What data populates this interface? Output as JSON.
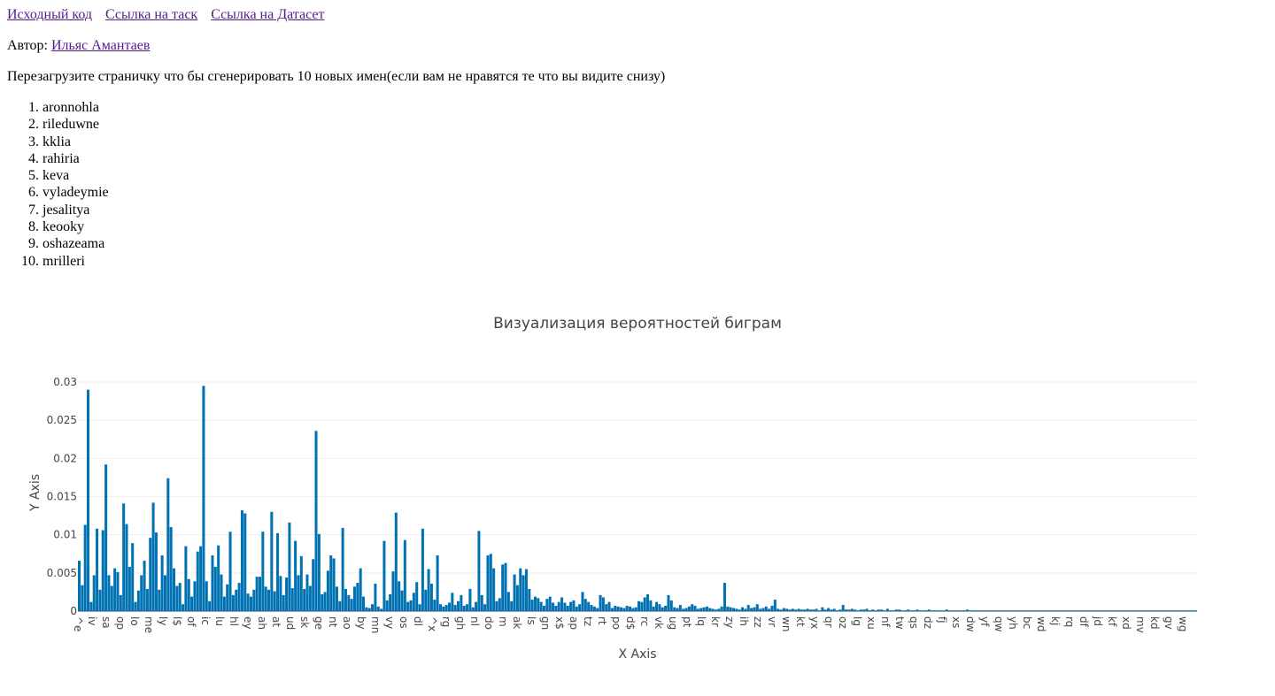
{
  "links": [
    {
      "label": "Исходный код"
    },
    {
      "label": "Ссылка на таск"
    },
    {
      "label": "Ссылка на Датасет"
    }
  ],
  "author": {
    "prefix": "Автор:",
    "name": "Ильяс Амантаев"
  },
  "note": "Перезагрузите страничку что бы сгенерировать 10 новых имен(если вам не нравятся те что вы видите снизу)",
  "names": [
    "aronnohla",
    "rileduwne",
    "kklia",
    "rahiria",
    "keva",
    "vyladeymie",
    "jesalitya",
    "keooky",
    "oshazeama",
    "mrilleri"
  ],
  "colors": {
    "bar": "#0072b2",
    "grid": "#eeeeee",
    "link": "#551a8b"
  },
  "chart_data": {
    "type": "bar",
    "title": "Визуализация вероятностей биграм",
    "xlabel": "X Axis",
    "ylabel": "Y Axis",
    "ylim": [
      0,
      0.03
    ],
    "yticks": [
      "0",
      "0.005",
      "0.01",
      "0.015",
      "0.02",
      "0.025",
      "0.03"
    ],
    "grid": true,
    "tick_labels": [
      "^e",
      "iv",
      "sa",
      "op",
      "lo",
      "me",
      "ly",
      "l$",
      "of",
      "ic",
      "lu",
      "hl",
      "ey",
      "ah",
      "at",
      "ud",
      "sk",
      "ge",
      "nt",
      "ao",
      "by",
      "mn",
      "vy",
      "os",
      "dl",
      "^x",
      "rg",
      "gh",
      "nl",
      "do",
      "m",
      "ak",
      "ls",
      "gn",
      "x$",
      "ap",
      "tz",
      "rt",
      "po",
      "d$",
      "rc",
      "vk",
      "ug",
      "pt",
      "lq",
      "kr",
      "zy",
      "ih",
      "zz",
      "vr",
      "wn",
      "kt",
      "yx",
      "qr",
      "oz",
      "lg",
      "xu",
      "nf",
      "tw",
      "qs",
      "dz",
      "fj",
      "xs",
      "dw",
      "yf",
      "qw",
      "yh",
      "bc",
      "wd",
      "kj",
      "rq",
      "df",
      "jd",
      "kf",
      "xd",
      "mv",
      "kd",
      "gv",
      "wg"
    ],
    "values": [
      0.0066,
      0.0034,
      0.0113,
      0.029,
      0.0012,
      0.0047,
      0.0108,
      0.0028,
      0.0106,
      0.0192,
      0.0047,
      0.0033,
      0.0056,
      0.0051,
      0.0021,
      0.0141,
      0.0114,
      0.0058,
      0.0089,
      0.0012,
      0.0027,
      0.0047,
      0.0066,
      0.0029,
      0.0096,
      0.0142,
      0.0103,
      0.0028,
      0.0073,
      0.0047,
      0.0174,
      0.011,
      0.0056,
      0.0033,
      0.0037,
      0.0009,
      0.0085,
      0.0042,
      0.0019,
      0.0039,
      0.0078,
      0.0085,
      0.0295,
      0.0039,
      0.0013,
      0.0073,
      0.0058,
      0.0086,
      0.0048,
      0.0019,
      0.0035,
      0.0104,
      0.0021,
      0.0028,
      0.0037,
      0.0132,
      0.0128,
      0.0023,
      0.0019,
      0.0028,
      0.0045,
      0.0045,
      0.0104,
      0.0032,
      0.0028,
      0.013,
      0.0026,
      0.0102,
      0.0046,
      0.0021,
      0.0044,
      0.0116,
      0.003,
      0.0092,
      0.0047,
      0.0072,
      0.0029,
      0.0048,
      0.0033,
      0.0068,
      0.0236,
      0.0101,
      0.0022,
      0.0025,
      0.0053,
      0.0073,
      0.0069,
      0.0032,
      0.0013,
      0.0109,
      0.0029,
      0.0021,
      0.0016,
      0.0032,
      0.0037,
      0.0056,
      0.0019,
      0.0005,
      0.0004,
      0.0009,
      0.0036,
      0.0006,
      0.0003,
      0.0092,
      0.0014,
      0.0022,
      0.0052,
      0.0129,
      0.0039,
      0.0027,
      0.0093,
      0.0012,
      0.0014,
      0.0024,
      0.0038,
      0.0009,
      0.0108,
      0.0028,
      0.0055,
      0.0036,
      0.0015,
      0.0073,
      0.0009,
      0.0006,
      0.0008,
      0.0011,
      0.0024,
      0.0008,
      0.0013,
      0.0021,
      0.0007,
      0.0009,
      0.0029,
      0.0005,
      0.0012,
      0.0105,
      0.0021,
      0.0009,
      0.0073,
      0.0075,
      0.0056,
      0.0013,
      0.0017,
      0.0061,
      0.0063,
      0.0025,
      0.0013,
      0.0048,
      0.0034,
      0.0056,
      0.0047,
      0.0055,
      0.0029,
      0.0015,
      0.0019,
      0.0017,
      0.0012,
      0.0007,
      0.0016,
      0.0019,
      0.0011,
      0.0007,
      0.0012,
      0.0018,
      0.0011,
      0.0007,
      0.0012,
      0.0014,
      0.0006,
      0.0009,
      0.0025,
      0.0016,
      0.0012,
      0.0008,
      0.0006,
      0.0004,
      0.0021,
      0.0018,
      0.0009,
      0.0012,
      0.0004,
      0.0007,
      0.0006,
      0.0005,
      0.0004,
      0.0007,
      0.0006,
      0.0004,
      0.0005,
      0.0013,
      0.0012,
      0.0018,
      0.0022,
      0.0014,
      0.0006,
      0.0012,
      0.0009,
      0.0005,
      0.0007,
      0.0021,
      0.0014,
      0.0005,
      0.0004,
      0.0008,
      0.0003,
      0.0004,
      0.0006,
      0.0009,
      0.0007,
      0.0003,
      0.0004,
      0.0005,
      0.0006,
      0.0004,
      0.0003,
      0.0002,
      0.0003,
      0.0006,
      0.0037,
      0.0006,
      0.0005,
      0.0004,
      0.0003,
      0.0002,
      0.0005,
      0.0003,
      0.0008,
      0.0004,
      0.0005,
      0.0009,
      0.0003,
      0.0004,
      0.0006,
      0.0003,
      0.0007,
      0.0015,
      0.0003,
      0.0002,
      0.0004,
      0.0003,
      0.0002,
      0.0003,
      0.0002,
      0.0003,
      0.0002,
      0.0002,
      0.0003,
      0.0002,
      0.0002,
      0.0003,
      0.0001,
      0.0005,
      0.0002,
      0.0004,
      0.0002,
      0.0003,
      0.0001,
      0.0002,
      0.0008,
      0.0002,
      0.0002,
      0.0003,
      0.0002,
      0.0001,
      0.0002,
      0.0002,
      0.0003,
      0.0001,
      0.0002,
      0.0001,
      0.0002,
      0.0002,
      0.0001,
      0.0003,
      0.0001,
      0.0001,
      0.0002,
      0.0002,
      0.0001,
      0.0001,
      0.0002,
      0.0001,
      0.0001,
      0.0002,
      0.0001,
      0.0001,
      0.0001,
      0.0002,
      0.0001,
      0.0001,
      0.0001,
      0.0001,
      0.0001,
      0.0002,
      0.0001,
      0.0001,
      0.0001,
      0.0001,
      0.0001,
      0.0001,
      0.0002,
      0.0001,
      0.0001,
      0.0001,
      0.0001,
      0.0001,
      0.0001,
      0.0001,
      0.0001,
      0.0001,
      0.0001,
      0.0001,
      0.0001,
      0.0001,
      0.0001,
      0.0001,
      0.0001,
      0.0001,
      0.0001,
      0.0001,
      0.0001,
      0.0001,
      0.0001,
      0.0001,
      0.0001,
      0.0001,
      0.0001,
      0.0001,
      0.0001,
      0.0001,
      0.0001,
      0.0001,
      0.0001,
      0.0001,
      0.0001,
      0.0001,
      0.0001,
      0.0001,
      0.0001,
      0.0001,
      0.0001,
      0.0001,
      0.0001,
      0.0001,
      0.0001,
      0.0001,
      0.0001,
      0.0001,
      0.0001,
      0.0001,
      0.0001,
      0.0001,
      0.0001,
      0.0001,
      0.0001,
      0.0001,
      0.0001,
      0.0001,
      0.0001,
      0.0001,
      0.0001,
      0.0001,
      0.0001,
      0.0001,
      0.0001,
      0.0001,
      0.0001,
      0.0001,
      0.0001,
      0.0001,
      0.0001,
      0.0001,
      0.0001,
      0.0001,
      0.0001,
      0.0001,
      0.0001,
      0.0001
    ]
  }
}
